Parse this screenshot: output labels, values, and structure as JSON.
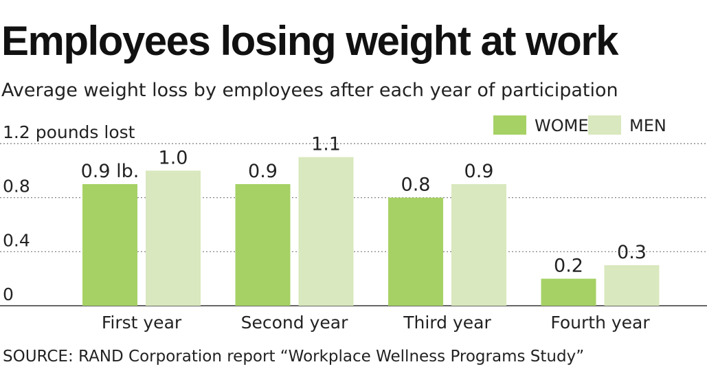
{
  "title": "Employees losing weight at work",
  "subtitle": "Average weight loss by employees after each year of participation",
  "source": "SOURCE: RAND Corporation report “Workplace Wellness Programs Study”",
  "colors": {
    "women": "#a6d165",
    "men": "#d9e8be",
    "grid": "#777777",
    "axis": "#333333",
    "text": "#222222"
  },
  "chart_data": {
    "type": "bar",
    "title": "Employees losing weight at work",
    "subtitle": "Average weight loss by employees after each year of participation",
    "ylabel": "pounds lost",
    "ylim": [
      0,
      1.2
    ],
    "yticks": [
      0,
      0.4,
      0.8,
      1.2
    ],
    "ytick_labels": [
      "0",
      "0.4",
      "0.8",
      "1.2 pounds lost"
    ],
    "grid": "dotted horizontal",
    "legend_position": "top-right",
    "categories": [
      "First year",
      "Second year",
      "Third year",
      "Fourth year"
    ],
    "series": [
      {
        "name": "WOMEN",
        "values": [
          0.9,
          0.9,
          0.8,
          0.2
        ],
        "labels": [
          "0.9 lb.",
          "0.9",
          "0.8",
          "0.2"
        ],
        "color": "#a6d165"
      },
      {
        "name": "MEN",
        "values": [
          1.0,
          1.1,
          0.9,
          0.3
        ],
        "labels": [
          "1.0",
          "1.1",
          "0.9",
          "0.3"
        ],
        "color": "#d9e8be"
      }
    ]
  }
}
